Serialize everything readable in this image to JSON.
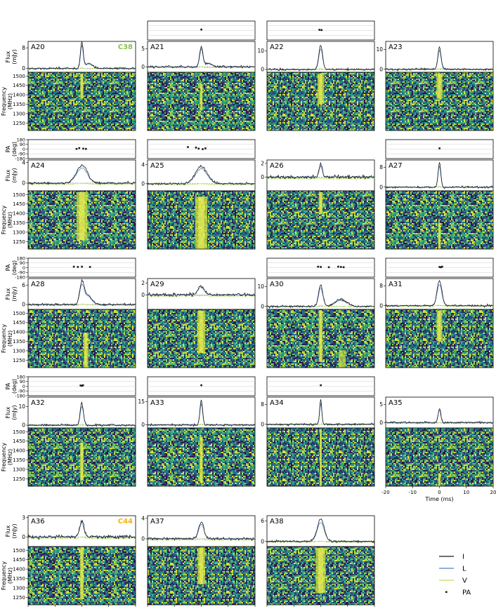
{
  "chart_data": {
    "type": "line",
    "figure": "Burst profiles grid: per burst polarization angle (PA), flux (I, L, V) and dynamic spectrum",
    "time_axis": {
      "label": "Time (ms)",
      "range": [
        -20,
        20
      ],
      "ticks": [
        -20,
        -10,
        0,
        10,
        20
      ]
    },
    "freq_axis": {
      "label": "Frequency (MHz)",
      "range": [
        1210,
        1520
      ],
      "ticks": [
        1250,
        1300,
        1350,
        1400,
        1450,
        1500
      ]
    },
    "pa_axis": {
      "label": "PA (deg)",
      "range": [
        -180,
        180
      ],
      "ticks": [
        180,
        90,
        0,
        -90,
        -180
      ]
    },
    "flux_axis_label": "Flux (mJy)",
    "legend": [
      {
        "key": "I",
        "label": "I",
        "color": "#1a1a1a"
      },
      {
        "key": "L",
        "label": "L",
        "color": "#4a7fc4"
      },
      {
        "key": "V",
        "label": "V",
        "color": "#b7e25b"
      },
      {
        "key": "PA",
        "label": "PA",
        "color": "#1a1a1a"
      }
    ],
    "component_tags": [
      {
        "panel": "A20",
        "label": "C38",
        "color": "#8bc34a"
      },
      {
        "panel": "A36",
        "label": "C44",
        "color": "#f2b21b"
      }
    ],
    "panels": [
      {
        "id": "A20",
        "flux_ticks": [
          0,
          8
        ],
        "flux_range": [
          -1.5,
          10.5
        ],
        "peak": 10,
        "width_ms": 0.5,
        "tail": 2.0,
        "pa": null
      },
      {
        "id": "A21",
        "flux_ticks": [
          0,
          5
        ],
        "flux_range": [
          -1.5,
          7
        ],
        "peak": 5.5,
        "width_ms": 0.6,
        "tail": 1.0,
        "pa": [
          {
            "t": 0,
            "v": 20
          }
        ]
      },
      {
        "id": "A22",
        "flux_ticks": [
          0,
          10
        ],
        "flux_range": [
          -1.5,
          15
        ],
        "peak": 13,
        "width_ms": 0.7,
        "tail": 0,
        "pa": [
          {
            "t": -0.5,
            "v": 15
          },
          {
            "t": 0.3,
            "v": 10
          }
        ]
      },
      {
        "id": "A23",
        "flux_ticks": [
          0,
          10
        ],
        "flux_range": [
          -1.5,
          14
        ],
        "peak": 11,
        "width_ms": 0.6,
        "tail": 0,
        "pa": null
      },
      {
        "id": "A24",
        "flux_ticks": [
          0,
          4
        ],
        "flux_range": [
          -1.5,
          4.5
        ],
        "peak": 3.5,
        "width_ms": 2.0,
        "tail": 0,
        "pa": [
          {
            "t": -2,
            "v": 5
          },
          {
            "t": -1,
            "v": 20
          },
          {
            "t": 0.5,
            "v": 10
          },
          {
            "t": 1.5,
            "v": 5
          }
        ]
      },
      {
        "id": "A25",
        "flux_ticks": [
          0,
          4
        ],
        "flux_range": [
          -1.5,
          5
        ],
        "peak": 3.7,
        "width_ms": 2.2,
        "tail": 0,
        "pa": [
          {
            "t": -5,
            "v": 40
          },
          {
            "t": -2,
            "v": 30
          },
          {
            "t": -1,
            "v": 10
          },
          {
            "t": 0.5,
            "v": 0
          },
          {
            "t": 1.5,
            "v": 15
          }
        ]
      },
      {
        "id": "A26",
        "flux_ticks": [
          0,
          2
        ],
        "flux_range": [
          -2,
          2.5
        ],
        "peak": 1.8,
        "width_ms": 0.6,
        "tail": 0,
        "pa": null
      },
      {
        "id": "A27",
        "flux_ticks": [
          0,
          8
        ],
        "flux_range": [
          -1.5,
          11
        ],
        "peak": 10,
        "width_ms": 0.5,
        "tail": 0,
        "pa": [
          {
            "t": 0,
            "v": 15
          }
        ]
      },
      {
        "id": "A28",
        "flux_ticks": [
          0,
          6
        ],
        "flux_range": [
          -1.5,
          8
        ],
        "peak": 6.5,
        "width_ms": 0.8,
        "tail": 3.0,
        "pa": [
          {
            "t": -3,
            "v": 20
          },
          {
            "t": -1.5,
            "v": 15
          },
          {
            "t": 0,
            "v": 20
          },
          {
            "t": 3,
            "v": 15
          }
        ]
      },
      {
        "id": "A29",
        "flux_ticks": [
          0,
          2
        ],
        "flux_range": [
          -2.5,
          2.8
        ],
        "peak": 1.5,
        "width_ms": 1.2,
        "tail": 0,
        "pa": null
      },
      {
        "id": "A30",
        "flux_ticks": [
          0,
          10
        ],
        "flux_range": [
          -1.5,
          14
        ],
        "peak": 11,
        "width_ms": 0.8,
        "tail": 3.5,
        "pa": [
          {
            "t": -1,
            "v": 20
          },
          {
            "t": 0,
            "v": 15
          },
          {
            "t": 3,
            "v": 10
          },
          {
            "t": 6.5,
            "v": 20
          },
          {
            "t": 7.5,
            "v": 15
          },
          {
            "t": 8.5,
            "v": 10
          }
        ]
      },
      {
        "id": "A31",
        "flux_ticks": [
          0,
          8
        ],
        "flux_range": [
          -1.5,
          11
        ],
        "peak": 10,
        "width_ms": 0.9,
        "tail": 0,
        "pa": [
          {
            "t": 0,
            "v": 15
          },
          {
            "t": 0.5,
            "v": 10
          },
          {
            "t": 1,
            "v": 20
          }
        ]
      },
      {
        "id": "A32",
        "flux_ticks": [
          0,
          10
        ],
        "flux_range": [
          -1.5,
          15
        ],
        "peak": 12,
        "width_ms": 0.6,
        "tail": 0,
        "pa": [
          {
            "t": -0.5,
            "v": 15
          },
          {
            "t": 0,
            "v": 10
          },
          {
            "t": 0.4,
            "v": 20
          }
        ]
      },
      {
        "id": "A33",
        "flux_ticks": [
          0,
          15
        ],
        "flux_range": [
          -2,
          18
        ],
        "peak": 16,
        "width_ms": 0.5,
        "tail": 0,
        "pa": [
          {
            "t": 0,
            "v": 20
          }
        ]
      },
      {
        "id": "A34",
        "flux_ticks": [
          0,
          8
        ],
        "flux_range": [
          -1.5,
          11
        ],
        "peak": 10,
        "width_ms": 0.4,
        "tail": 0,
        "pa": [
          {
            "t": 0,
            "v": 20
          }
        ]
      },
      {
        "id": "A35",
        "flux_ticks": [
          0,
          5
        ],
        "flux_range": [
          -1.5,
          7
        ],
        "peak": 4,
        "width_ms": 0.5,
        "tail": 0,
        "pa": null
      },
      {
        "id": "A36",
        "flux_ticks": [
          0,
          3
        ],
        "flux_range": [
          -1.5,
          3.3
        ],
        "peak": 2.5,
        "width_ms": 0.8,
        "tail": 0,
        "pa": null
      },
      {
        "id": "A37",
        "flux_ticks": [
          0,
          4
        ],
        "flux_range": [
          -1.5,
          4.5
        ],
        "peak": 3.3,
        "width_ms": 1.0,
        "tail": 0,
        "pa": null
      },
      {
        "id": "A38",
        "flux_ticks": [
          0,
          6
        ],
        "flux_range": [
          -1.5,
          7.5
        ],
        "peak": 6.5,
        "width_ms": 1.3,
        "tail": 0,
        "pa": null
      }
    ]
  }
}
